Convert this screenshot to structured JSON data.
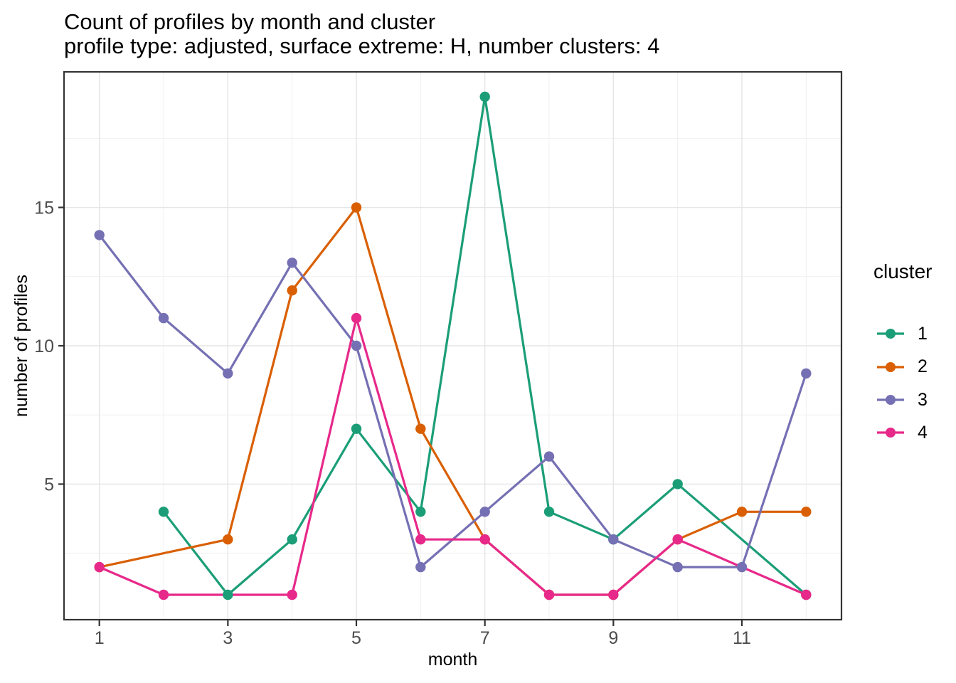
{
  "header": {
    "title": "Count of profiles by month and cluster",
    "subtitle": "profile type: adjusted, surface extreme: H, number clusters: 4"
  },
  "x_axis": {
    "label": "month",
    "tick_labels": [
      "1",
      "3",
      "5",
      "7",
      "9",
      "11"
    ]
  },
  "y_axis": {
    "label": "number of profiles",
    "tick_labels": [
      "5",
      "10",
      "15"
    ]
  },
  "legend": {
    "title": "cluster",
    "entries": [
      {
        "label": "1",
        "color": "#1B9E77"
      },
      {
        "label": "2",
        "color": "#D95F02"
      },
      {
        "label": "3",
        "color": "#7570B3"
      },
      {
        "label": "4",
        "color": "#E7298A"
      }
    ]
  },
  "chart_data": {
    "type": "line",
    "title": "Count of profiles by month and cluster",
    "subtitle": "profile type: adjusted, surface extreme: H, number clusters: 4",
    "xlabel": "month",
    "ylabel": "number of profiles",
    "x_ticks": [
      1,
      3,
      5,
      7,
      9,
      11
    ],
    "x_minor_ticks": [
      2,
      4,
      6,
      8,
      10,
      12
    ],
    "y_ticks": [
      5,
      10,
      15
    ],
    "y_minor_ticks": [
      2.5,
      7.5,
      12.5,
      17.5
    ],
    "x_range_shown": [
      0.45,
      12.55
    ],
    "y_range_shown": [
      0.1,
      19.9
    ],
    "grid": true,
    "legend_position": "right",
    "series": [
      {
        "name": "1",
        "color": "#1B9E77",
        "points": [
          [
            2,
            4
          ],
          [
            3,
            1
          ],
          [
            4,
            3
          ],
          [
            5,
            7
          ],
          [
            6,
            4
          ],
          [
            7,
            19
          ],
          [
            8,
            4
          ],
          [
            9,
            3
          ],
          [
            10,
            5
          ],
          [
            12,
            1
          ]
        ]
      },
      {
        "name": "2",
        "color": "#D95F02",
        "points": [
          [
            1,
            2
          ],
          [
            3,
            3
          ],
          [
            4,
            12
          ],
          [
            5,
            15
          ],
          [
            6,
            7
          ],
          [
            7,
            3
          ],
          [
            8,
            1
          ],
          [
            9,
            1
          ],
          [
            10,
            3
          ],
          [
            11,
            4
          ],
          [
            12,
            4
          ]
        ]
      },
      {
        "name": "3",
        "color": "#7570B3",
        "points": [
          [
            1,
            14
          ],
          [
            2,
            11
          ],
          [
            3,
            9
          ],
          [
            4,
            13
          ],
          [
            5,
            10
          ],
          [
            6,
            2
          ],
          [
            7,
            4
          ],
          [
            8,
            6
          ],
          [
            9,
            3
          ],
          [
            10,
            2
          ],
          [
            11,
            2
          ],
          [
            12,
            9
          ]
        ]
      },
      {
        "name": "4",
        "color": "#E7298A",
        "points": [
          [
            1,
            2
          ],
          [
            2,
            1
          ],
          [
            4,
            1
          ],
          [
            5,
            11
          ],
          [
            6,
            3
          ],
          [
            7,
            3
          ],
          [
            8,
            1
          ],
          [
            9,
            1
          ],
          [
            10,
            3
          ],
          [
            12,
            1
          ]
        ]
      }
    ]
  },
  "style": {
    "background": "#FFFFFF",
    "grid_major_color": "#E5E5E5",
    "grid_minor_color": "#F0F0F0",
    "panel_border_color": "#333333",
    "tick_color": "#333333",
    "tick_label_color": "#4D4D4D",
    "text_color": "#000000"
  }
}
